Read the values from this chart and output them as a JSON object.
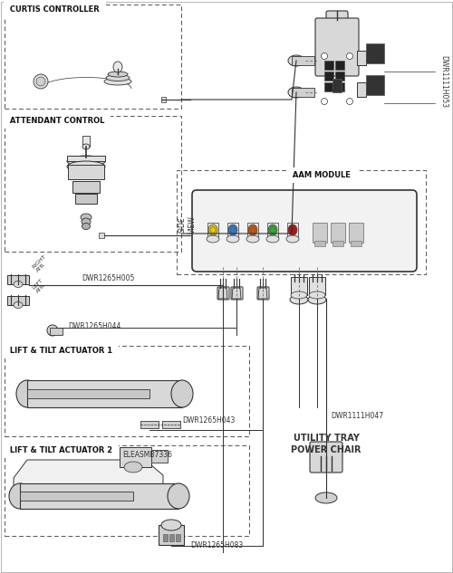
{
  "bg_color": "#ffffff",
  "lc": "#333333",
  "lc_dark": "#222222",
  "labels": {
    "curtis": "CURTIS CONTROLLER",
    "attendant": "ATTENDANT CONTROL",
    "aam": "AAM MODULE",
    "lift1": "LIFT & TILT ACTUATOR 1",
    "lift2": "LIFT & TILT ACTUATOR 2",
    "power_chair_1": "POWER CHAIR",
    "power_chair_2": "UTILITY TRAY",
    "dwr1265h005": "DWR1265H005",
    "dwr1265h044": "DWR1265H044",
    "dwr1265h043": "DWR1265H043",
    "dwr1111h047": "DWR1111H047",
    "dwr1265h083": "DWR1265H083",
    "dwr1111h053": "DWR1111H053",
    "eleasmb7336": "ELEASMB7336"
  },
  "connector_colors": [
    "#e8c800",
    "#3377cc",
    "#cc5500",
    "#33aa33",
    "#cc0000"
  ],
  "grey_connector_colors": [
    "#aaaaaa",
    "#aaaaaa",
    "#aaaaaa"
  ],
  "font_size_small": 5.5,
  "font_size_med": 6.5,
  "font_size_label": 7.5
}
